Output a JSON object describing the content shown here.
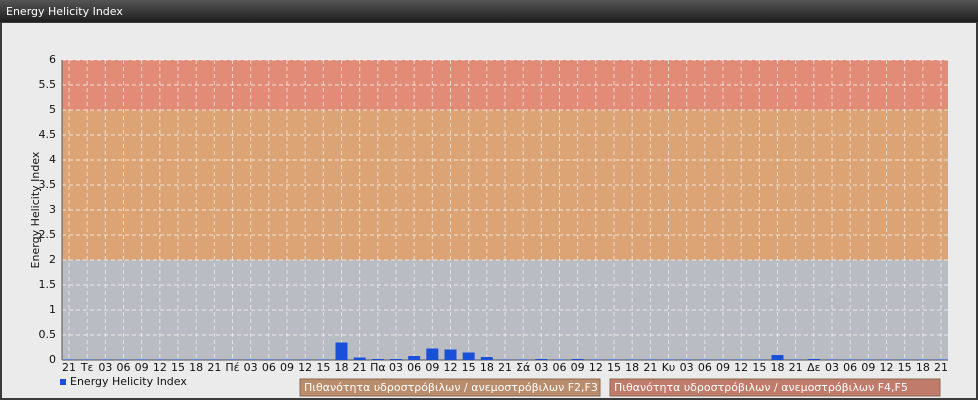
{
  "chart_data": {
    "type": "bar",
    "title": "Energy Helicity Index",
    "y_label": "Energy Helicity Index",
    "categories": [
      "21",
      "Τε",
      "03",
      "06",
      "09",
      "12",
      "15",
      "18",
      "21",
      "Πέ",
      "03",
      "06",
      "09",
      "12",
      "15",
      "18",
      "21",
      "Πα",
      "03",
      "06",
      "09",
      "12",
      "15",
      "18",
      "21",
      "Σά",
      "03",
      "06",
      "09",
      "12",
      "15",
      "18",
      "21",
      "Κυ",
      "03",
      "06",
      "09",
      "12",
      "15",
      "18",
      "21",
      "Δε",
      "03",
      "06",
      "09",
      "12",
      "15",
      "18",
      "21"
    ],
    "series": [
      {
        "name": "Energy Helicity Index",
        "color": "#1a4fd8",
        "values": [
          0.01,
          0.01,
          0.01,
          0.01,
          0.01,
          0.01,
          0.01,
          0.01,
          0.01,
          0.01,
          0.01,
          0.01,
          0.01,
          0.01,
          0.01,
          0.35,
          0.05,
          0.02,
          0.02,
          0.08,
          0.23,
          0.21,
          0.15,
          0.06,
          0.01,
          0.01,
          0.02,
          0.01,
          0.02,
          0.01,
          0.01,
          0.01,
          0.01,
          0.01,
          0.01,
          0.01,
          0.01,
          0.01,
          0.01,
          0.1,
          0.01,
          0.02,
          0.01,
          0.01,
          0.01,
          0.01,
          0.01,
          0.01,
          0.01
        ]
      }
    ],
    "bands": [
      {
        "from": 0,
        "to": 2,
        "color": "#b9bcc3"
      },
      {
        "from": 2,
        "to": 5,
        "color": "#dca474",
        "name": "Πιθανότητα υδροστρόβιλων / ανεμοστρόβιλων F2,F3",
        "legend_color": "#b98c6c"
      },
      {
        "from": 5,
        "to": 6,
        "color": "#e28c78",
        "name": "Πιθανότητα υδροστρόβιλων / ανεμοστρόβιλων F4,F5",
        "legend_color": "#c07b6b"
      }
    ],
    "ylim": [
      0,
      6
    ],
    "yticks": [
      0,
      0.5,
      1,
      1.5,
      2,
      2.5,
      3,
      3.5,
      4,
      4.5,
      5,
      5.5,
      6
    ],
    "grid": true
  }
}
